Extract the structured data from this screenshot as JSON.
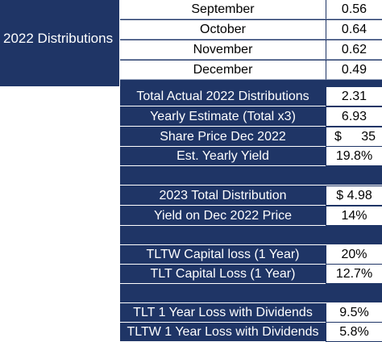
{
  "section_label": "2022 Distributions",
  "months": [
    {
      "label": "September",
      "value": "0.56"
    },
    {
      "label": "October",
      "value": "0.64"
    },
    {
      "label": "November",
      "value": "0.62"
    },
    {
      "label": "December",
      "value": "0.49"
    }
  ],
  "summary": [
    {
      "label": "Total Actual 2022 Distributions",
      "value": "2.31"
    },
    {
      "label": "Yearly Estimate (Total x3)",
      "value": "6.93"
    },
    {
      "label": "Share Price Dec 2022",
      "currency": "$",
      "amount": "35"
    },
    {
      "label": "Est. Yearly Yield",
      "value": "19.8%"
    },
    {
      "label": "2023 Total Distribution",
      "value": "$ 4.98"
    },
    {
      "label": "Yield on Dec 2022 Price",
      "value": "14%"
    },
    {
      "label": "TLTW Capital loss (1 Year)",
      "value": "20%"
    },
    {
      "label": "TLT Capital Loss (1 Year)",
      "value": "12.7%"
    },
    {
      "label": "TLT 1 Year Loss with Dividends",
      "value": "9.5%"
    },
    {
      "label": "TLTW 1 Year Loss with Dividends",
      "value": "5.8%"
    }
  ],
  "colors": {
    "header_bg": "#1f3566",
    "text_light": "#ffffff",
    "cell_bg": "#ffffff"
  }
}
